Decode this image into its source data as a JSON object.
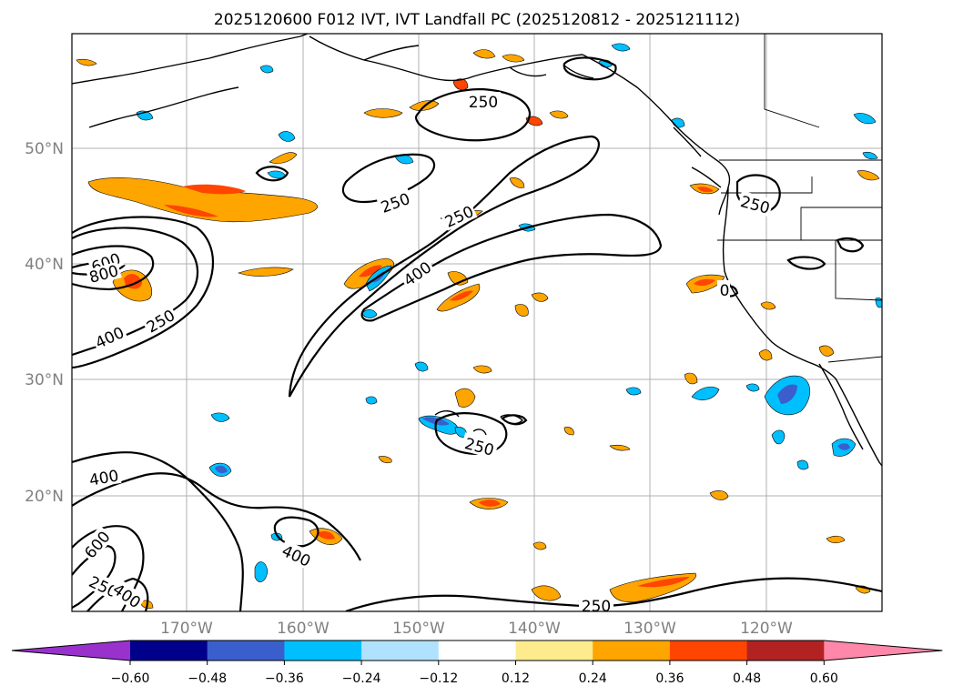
{
  "title": "2025120600 F012 IVT, IVT Landfall PC (2025120812 - 2025121112)",
  "lat_labels": [
    "50°N",
    "40°N",
    "30°N",
    "20°N"
  ],
  "lon_labels": [
    "170°W",
    "160°W",
    "150°W",
    "140°W",
    "130°W",
    "120°W"
  ],
  "colorbar": {
    "ticks": [
      "−0.60",
      "−0.48",
      "−0.36",
      "−0.24",
      "−0.12",
      "0.12",
      "0.24",
      "0.36",
      "0.48",
      "0.60"
    ],
    "colors": [
      "#9932cc",
      "#00008b",
      "#3a5fcd",
      "#00bfff",
      "#b0e2ff",
      "#ffffff",
      "#fdeb8e",
      "#ffa500",
      "#ff4500",
      "#b22222",
      "#ff88aa"
    ]
  },
  "contour_labels": {
    "c250_top": "250",
    "c250_mid": "250",
    "c250_mid2": "250",
    "c250_west": "250",
    "c250_coast": "250",
    "c250_south": "250",
    "c250_bottom": "250",
    "c250_sw": "250",
    "c400_mid": "400",
    "c400_west": "400",
    "c400_sw": "400",
    "c400_lower": "400",
    "c400_sw2": "400",
    "c600_west": "600",
    "c600_sw": "600",
    "c800_west": "800",
    "c0_coast": "0"
  },
  "colors": {
    "orange": "#ffa500",
    "red": "#ff4500",
    "darkred": "#e03a10",
    "skyblue": "#00bfff",
    "royal": "#3a5fcd",
    "grid": "#b0b0b0"
  }
}
